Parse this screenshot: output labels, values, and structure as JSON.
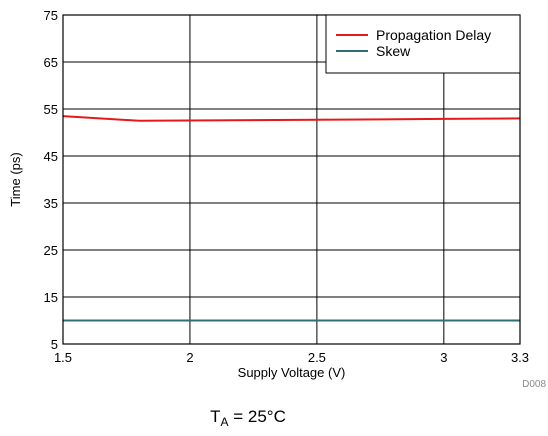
{
  "chart_data": {
    "type": "line",
    "xlabel": "Supply Voltage (V)",
    "ylabel": "Time (ps)",
    "xlim": [
      1.5,
      3.3
    ],
    "ylim": [
      5,
      75
    ],
    "x_ticks": [
      1.5,
      2,
      2.5,
      3,
      3.3
    ],
    "x_tick_labels": [
      "1.5",
      "2",
      "2.5",
      "3",
      "3.3"
    ],
    "y_ticks": [
      5,
      15,
      25,
      35,
      45,
      55,
      65,
      75
    ],
    "y_tick_labels": [
      "5",
      "15",
      "25",
      "35",
      "45",
      "55",
      "65",
      "75"
    ],
    "grid": true,
    "legend_position": "top-right",
    "series": [
      {
        "name": "Propagation Delay",
        "color": "#e31a1c",
        "x": [
          1.5,
          1.8,
          2.5,
          3.0,
          3.3
        ],
        "y": [
          53.5,
          52.5,
          52.7,
          52.9,
          53.0
        ]
      },
      {
        "name": "Skew",
        "color": "#2e6e74",
        "x": [
          1.5,
          3.3
        ],
        "y": [
          10.0,
          10.0
        ]
      }
    ],
    "figure_code": "D008",
    "condition": {
      "main": "T",
      "sub": "A",
      "rest": " = 25°C"
    }
  }
}
